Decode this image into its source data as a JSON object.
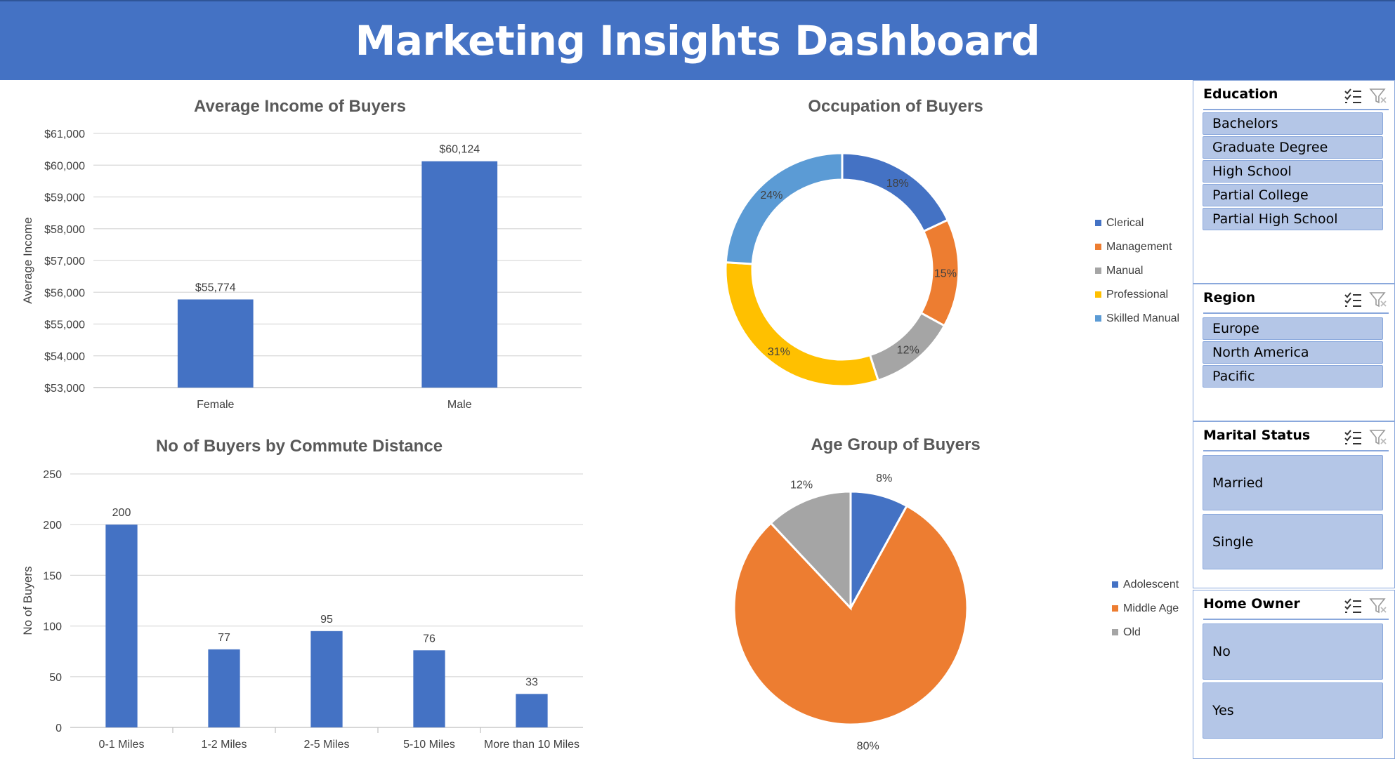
{
  "dashboard": {
    "title": "Marketing Insights Dashboard"
  },
  "colors": {
    "accent": "#4472c4",
    "orange": "#ed7d31",
    "gray": "#a5a5a5",
    "gold": "#ffc000",
    "lightblue": "#5b9bd5",
    "slicer_fill": "#b4c6e7",
    "slicer_border": "#8aa8dc"
  },
  "chart_data": [
    {
      "type": "bar",
      "title": "Average Income of Buyers",
      "xlabel": "",
      "ylabel": "Average Income",
      "categories": [
        "Female",
        "Male"
      ],
      "values": [
        55774,
        60124
      ],
      "value_labels": [
        "$55,774",
        "$60,124"
      ],
      "ylim": [
        53000,
        61000
      ],
      "yticks": [
        53000,
        54000,
        55000,
        56000,
        57000,
        58000,
        59000,
        60000,
        61000
      ],
      "ytick_labels": [
        "$53,000",
        "$54,000",
        "$55,000",
        "$56,000",
        "$57,000",
        "$58,000",
        "$59,000",
        "$60,000",
        "$61,000"
      ],
      "grid": true,
      "color": "#4472c4"
    },
    {
      "type": "pie",
      "subtype": "doughnut",
      "title": "Occupation of Buyers",
      "categories": [
        "Clerical",
        "Management",
        "Manual",
        "Professional",
        "Skilled Manual"
      ],
      "values": [
        18,
        15,
        12,
        31,
        24
      ],
      "value_labels": [
        "18%",
        "15%",
        "12%",
        "31%",
        "24%"
      ],
      "colors": [
        "#4472c4",
        "#ed7d31",
        "#a5a5a5",
        "#ffc000",
        "#5b9bd5"
      ],
      "legend": "right"
    },
    {
      "type": "bar",
      "title": "No of Buyers by Commute Distance",
      "xlabel": "",
      "ylabel": "No of Buyers",
      "categories": [
        "0-1 Miles",
        "1-2 Miles",
        "2-5 Miles",
        "5-10 Miles",
        "More than 10 Miles"
      ],
      "values": [
        200,
        77,
        95,
        76,
        33
      ],
      "value_labels": [
        "200",
        "77",
        "95",
        "76",
        "33"
      ],
      "ylim": [
        0,
        250
      ],
      "yticks": [
        0,
        50,
        100,
        150,
        200,
        250
      ],
      "ytick_labels": [
        "0",
        "50",
        "100",
        "150",
        "200",
        "250"
      ],
      "grid": true,
      "color": "#4472c4"
    },
    {
      "type": "pie",
      "title": "Age Group of Buyers",
      "categories": [
        "Adolescent",
        "Middle Age",
        "Old"
      ],
      "values": [
        8,
        80,
        12
      ],
      "value_labels": [
        "8%",
        "80%",
        "12%"
      ],
      "colors": [
        "#4472c4",
        "#ed7d31",
        "#a5a5a5"
      ],
      "legend": "right"
    }
  ],
  "slicers": [
    {
      "title": "Education",
      "items": [
        "Bachelors",
        "Graduate Degree",
        "High School",
        "Partial College",
        "Partial High School"
      ]
    },
    {
      "title": "Region",
      "items": [
        "Europe",
        "North America",
        "Pacific"
      ]
    },
    {
      "title": "Marital Status",
      "items": [
        "Married",
        "Single"
      ]
    },
    {
      "title": "Home Owner",
      "items": [
        "No",
        "Yes"
      ]
    }
  ]
}
